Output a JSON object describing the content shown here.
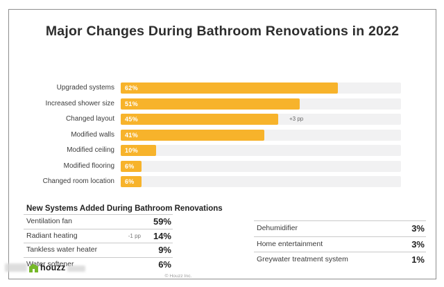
{
  "title": "Major Changes During Bathroom Renovations in 2022",
  "colors": {
    "bar": "#f7b32b",
    "track": "#f1f1f2",
    "brand_green": "#76b82a",
    "frame_border": "#8d8d8d"
  },
  "chart_data": [
    {
      "type": "bar",
      "orientation": "horizontal",
      "title": "Major Changes During Bathroom Renovations in 2022",
      "categories": [
        "Upgraded systems",
        "Increased shower size",
        "Changed layout",
        "Modified walls",
        "Modified ceiling",
        "Modified flooring",
        "Changed room location"
      ],
      "values": [
        62,
        51,
        45,
        41,
        10,
        6,
        6
      ],
      "value_labels": [
        "62%",
        "51%",
        "45%",
        "41%",
        "10%",
        "6%",
        "6%"
      ],
      "annotations": [
        {
          "category": "Changed layout",
          "text": "+3 pp"
        }
      ],
      "unit": "%",
      "xlim": [
        0,
        80
      ],
      "grid": false,
      "legend": "none",
      "bar_color": "#f7b32b",
      "track_color": "#f1f1f2"
    },
    {
      "type": "table",
      "title": "New Systems Added During Bathroom Renovations",
      "rows_left": [
        {
          "label": "Ventilation fan",
          "value": "59%",
          "note": ""
        },
        {
          "label": "Radiant heating",
          "value": "14%",
          "note": "-1 pp"
        },
        {
          "label": "Tankless water heater",
          "value": "9%",
          "note": ""
        },
        {
          "label": "Water softener",
          "value": "6%",
          "note": ""
        }
      ],
      "rows_right": [
        {
          "label": "Dehumidifier",
          "value": "3%",
          "note": ""
        },
        {
          "label": "Home entertainment",
          "value": "3%",
          "note": ""
        },
        {
          "label": "Greywater treatment system",
          "value": "1%",
          "note": ""
        }
      ]
    }
  ],
  "footer": {
    "logo_text": "houzz",
    "copyright": "© Houzz Inc."
  }
}
